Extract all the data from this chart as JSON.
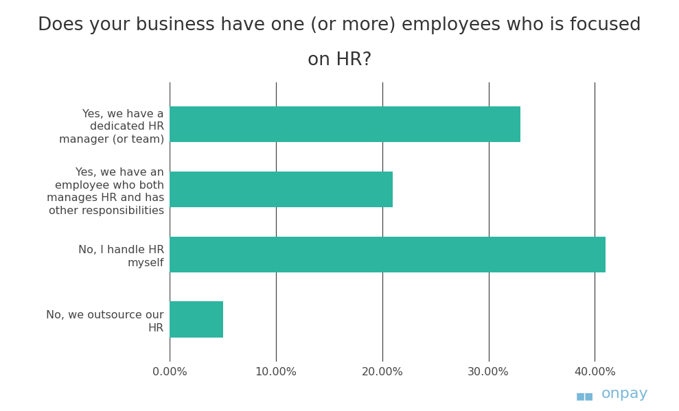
{
  "title_line1": "Does your business have one (or more) employees who is focused",
  "title_line2": "on HR?",
  "categories": [
    "No, we outsource our\nHR",
    "No, I handle HR\nmyself",
    "Yes, we have an\nemployee who both\nmanages HR and has\nother responsibilities",
    "Yes, we have a\ndedicated HR\nmanager (or team)"
  ],
  "values": [
    5.0,
    41.0,
    21.0,
    33.0
  ],
  "bar_color": "#2db5a0",
  "background_color": "#ffffff",
  "xlim": [
    0,
    46
  ],
  "xticks": [
    0,
    10,
    20,
    30,
    40
  ],
  "xtick_labels": [
    "0.00%",
    "10.00%",
    "20.00%",
    "30.00%",
    "40.00%"
  ],
  "title_fontsize": 19,
  "tick_fontsize": 11.5,
  "label_fontsize": 11.5,
  "bar_height": 0.55,
  "grid_color": "#444444",
  "text_color": "#444444",
  "onpay_color": "#7ab8d9"
}
